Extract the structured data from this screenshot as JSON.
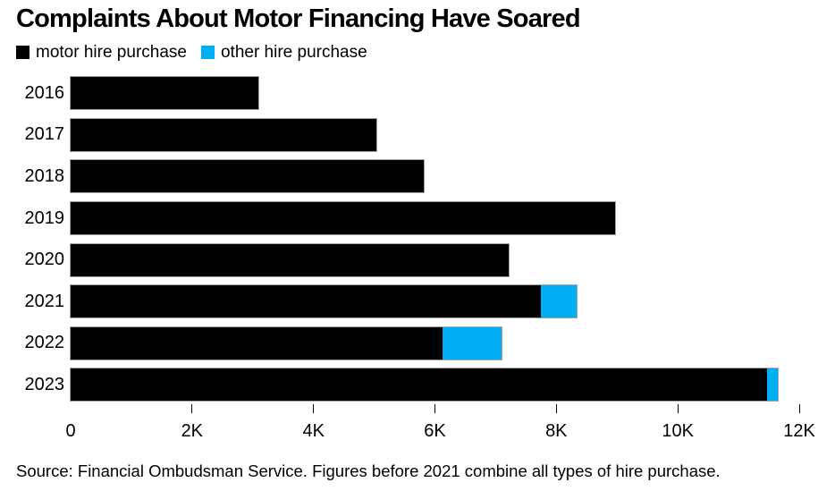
{
  "title": "Complaints About Motor Financing Have Soared",
  "legend": [
    {
      "label": "motor hire purchase",
      "color": "#000000"
    },
    {
      "label": "other hire purchase",
      "color": "#00aef3"
    }
  ],
  "source": "Source: Financial Ombudsman Service. Figures before 2021 combine all types of hire purchase.",
  "colors": {
    "motor": "#000000",
    "other": "#00aef3",
    "background": "#ffffff",
    "text": "#000000"
  },
  "chart_data": {
    "type": "bar",
    "orientation": "horizontal",
    "stacked": true,
    "title": "Complaints About Motor Financing Have Soared",
    "xlabel": "",
    "ylabel": "",
    "categories": [
      "2016",
      "2017",
      "2018",
      "2019",
      "2020",
      "2021",
      "2022",
      "2023"
    ],
    "series": [
      {
        "name": "motor hire purchase",
        "color": "#000000",
        "values": [
          3090,
          5030,
          5810,
          8970,
          7210,
          7740,
          6120,
          11470
        ]
      },
      {
        "name": "other hire purchase",
        "color": "#00aef3",
        "values": [
          0,
          0,
          0,
          0,
          0,
          600,
          980,
          170
        ]
      }
    ],
    "xlim": [
      0,
      12000
    ],
    "x_ticks": [
      {
        "value": 0,
        "label": "0"
      },
      {
        "value": 2000,
        "label": "2K"
      },
      {
        "value": 4000,
        "label": "4K"
      },
      {
        "value": 6000,
        "label": "6K"
      },
      {
        "value": 8000,
        "label": "8K"
      },
      {
        "value": 10000,
        "label": "10K"
      },
      {
        "value": 12000,
        "label": "12K"
      }
    ],
    "grid": false,
    "legend_position": "top-left",
    "note": "Figures before 2021 combine all types of hire purchase."
  }
}
